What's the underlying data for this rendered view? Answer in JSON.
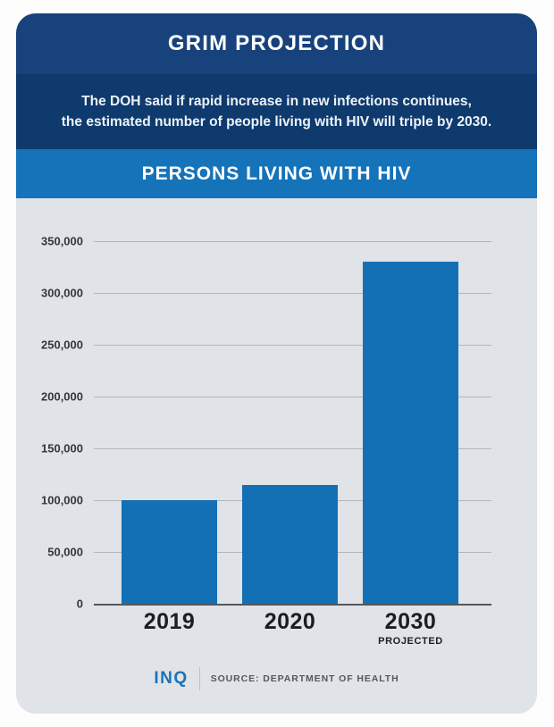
{
  "header": {
    "title": "GRIM PROJECTION",
    "subtitle_line1": "The DOH said if rapid increase in new infections continues,",
    "subtitle_line2": "the estimated number of people living with HIV will triple by 2030."
  },
  "chart_data": {
    "type": "bar",
    "title": "PERSONS LIVING WITH HIV",
    "categories": [
      "2019",
      "2020",
      "2030"
    ],
    "category_sublabels": [
      "",
      "",
      "PROJECTED"
    ],
    "values": [
      100000,
      115000,
      330000
    ],
    "ylim": [
      0,
      350000
    ],
    "ytick_step": 50000,
    "ytick_labels": [
      "0",
      "50,000",
      "100,000",
      "150,000",
      "200,000",
      "250,000",
      "300,000",
      "350,000"
    ],
    "bar_color": "#1470b4",
    "grid": true,
    "legend": false,
    "xlabel": "",
    "ylabel": ""
  },
  "footer": {
    "logo": "INQ",
    "source": "SOURCE: DEPARTMENT OF HEALTH"
  },
  "colors": {
    "header_band": "#17427b",
    "subtitle_band": "#0e3a6d",
    "chart_title_band": "#1573b9",
    "bar": "#1470b4",
    "card_background": "#e0e3e7",
    "page_background": "#fdfdfd",
    "gridline": "#b3b7ba",
    "baseline": "#55585b",
    "logo_blue": "#1d72b8"
  }
}
